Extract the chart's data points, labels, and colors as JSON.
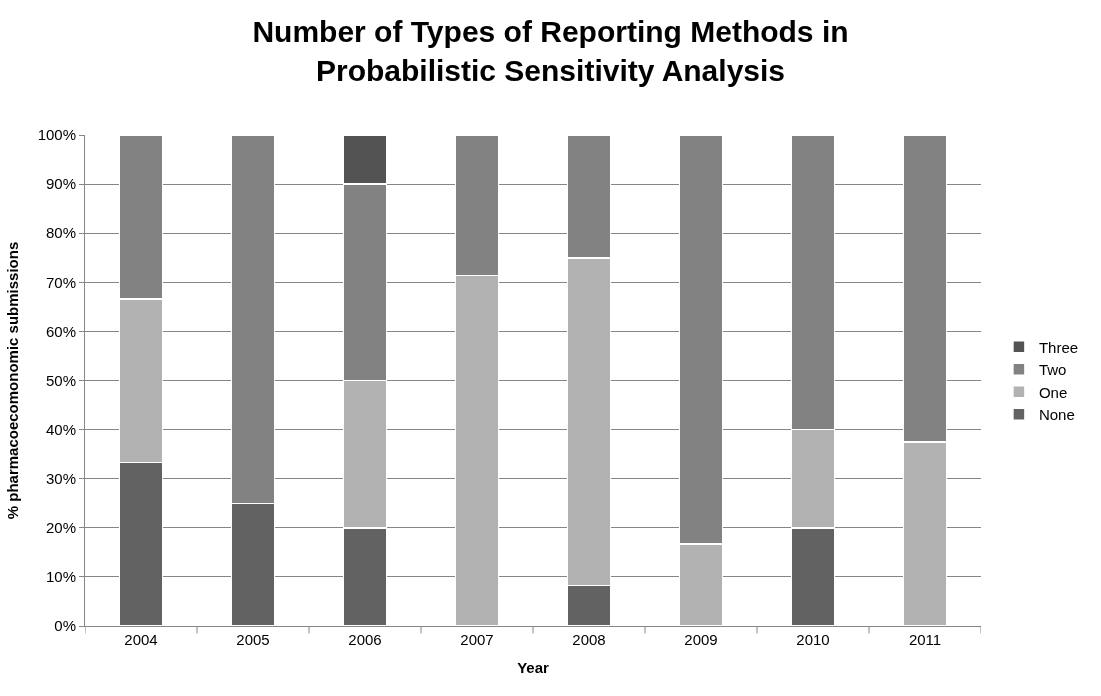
{
  "chart_data": {
    "type": "bar",
    "stacked": true,
    "title": "Number of Types of Reporting Methods in\nProbabilistic Sensitivity Analysis",
    "xlabel": "Year",
    "ylabel": "% pharmacoecomonomic submissions",
    "categories": [
      "2004",
      "2005",
      "2006",
      "2007",
      "2008",
      "2009",
      "2010",
      "2011"
    ],
    "series": [
      {
        "name": "None",
        "color": "#626262",
        "values": [
          33.3,
          25,
          20,
          null,
          8.3,
          null,
          20,
          null
        ]
      },
      {
        "name": "One",
        "color": "#b2b2b2",
        "values": [
          33.3,
          null,
          30,
          71.4,
          66.7,
          16.7,
          20,
          37.5
        ]
      },
      {
        "name": "Two",
        "color": "#828282",
        "values": [
          33.4,
          75,
          40,
          28.6,
          25,
          83.3,
          60,
          62.5
        ]
      },
      {
        "name": "Three",
        "color": "#535353",
        "values": [
          null,
          null,
          10,
          null,
          null,
          null,
          null,
          null
        ]
      }
    ],
    "ylim": [
      0,
      100
    ],
    "yticks": [
      {
        "value": 0,
        "label": "0%"
      },
      {
        "value": 10,
        "label": "10%"
      },
      {
        "value": 20,
        "label": "20%"
      },
      {
        "value": 30,
        "label": "30%"
      },
      {
        "value": 40,
        "label": "40%"
      },
      {
        "value": 50,
        "label": "50%"
      },
      {
        "value": 60,
        "label": "60%"
      },
      {
        "value": 70,
        "label": "70%"
      },
      {
        "value": 80,
        "label": "80%"
      },
      {
        "value": 90,
        "label": "90%"
      },
      {
        "value": 100,
        "label": "100%"
      }
    ],
    "grid": "y",
    "legend": "right"
  }
}
